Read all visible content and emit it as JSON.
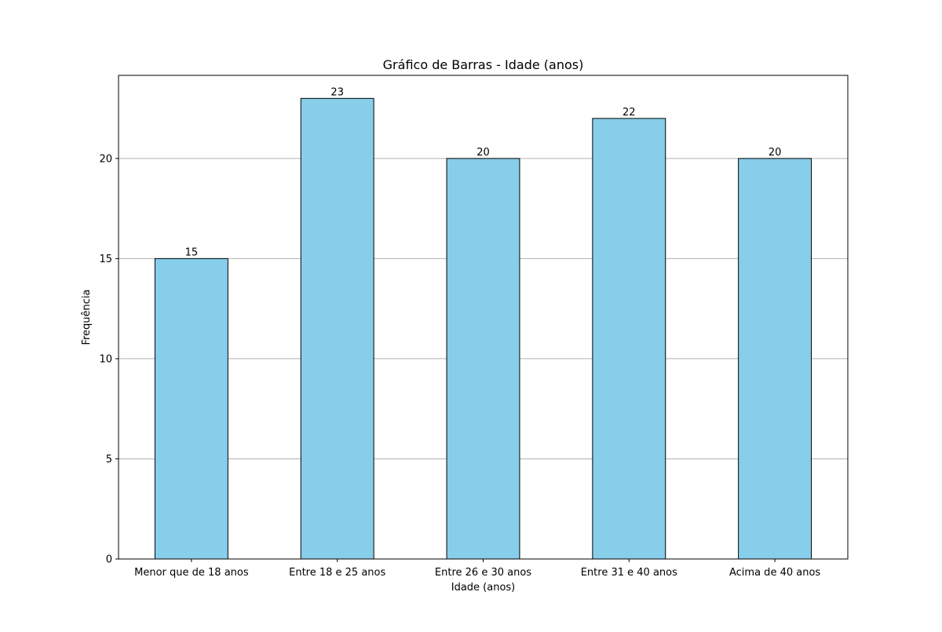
{
  "chart_data": {
    "type": "bar",
    "title": "Gráfico de Barras - Idade (anos)",
    "xlabel": "Idade (anos)",
    "ylabel": "Frequência",
    "categories": [
      "Menor que de 18 anos",
      "Entre 18 e 25 anos",
      "Entre 26 e 30 anos",
      "Entre 31 e 40 anos",
      "Acima de 40 anos"
    ],
    "values": [
      15,
      23,
      20,
      22,
      20
    ],
    "data_labels": [
      "15",
      "23",
      "20",
      "22",
      "20"
    ],
    "yticks": [
      0,
      5,
      10,
      15,
      20
    ],
    "ylim": [
      0,
      24.15
    ],
    "grid": "y",
    "legend": "none",
    "colors": {
      "bar_fill": "#87CEEB",
      "bar_edge": "#000000",
      "grid": "#b0b0b0",
      "axis": "#000000"
    }
  }
}
